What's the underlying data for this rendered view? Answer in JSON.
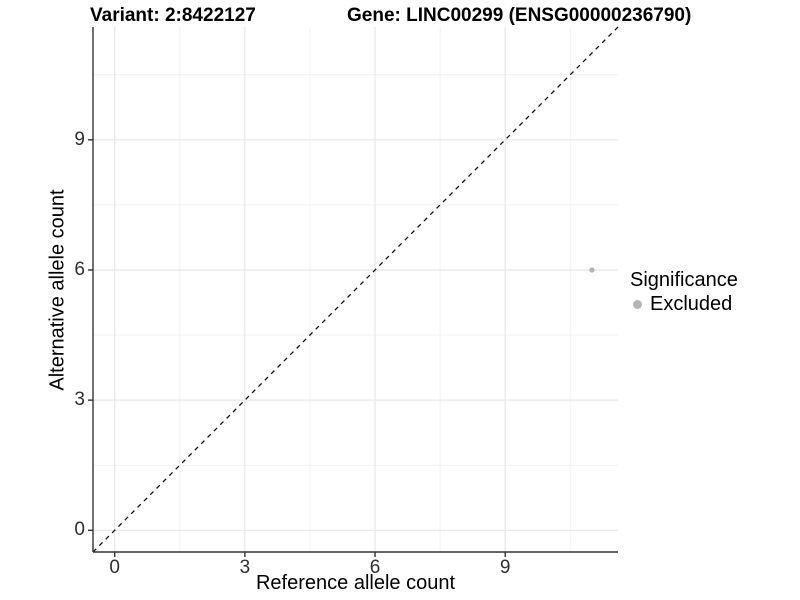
{
  "header": {
    "variant_title": "Variant: 2:8422127",
    "gene_title": "Gene: LINC00299 (ENSG00000236790)"
  },
  "chart_data": {
    "type": "scatter",
    "title_left": "Variant: 2:8422127",
    "title_right": "Gene: LINC00299 (ENSG00000236790)",
    "xlabel": "Reference allele count",
    "ylabel": "Alternative allele count",
    "xlim": [
      -0.5,
      11.6
    ],
    "ylim": [
      -0.5,
      11.6
    ],
    "xticks": [
      0,
      3,
      6,
      9
    ],
    "yticks": [
      0,
      3,
      6,
      9
    ],
    "minor_ticks": [
      1.5,
      4.5,
      7.5,
      10.5
    ],
    "grid": true,
    "reference_line": {
      "type": "identity",
      "style": "dashed",
      "color": "#111111"
    },
    "points": [
      {
        "x": 11,
        "y": 6,
        "significance": "Excluded",
        "color": "#b5b5b5",
        "radius": 2.6
      }
    ],
    "legend": {
      "title": "Significance",
      "position": "right",
      "items": [
        {
          "label": "Excluded",
          "color": "#b5b5b5"
        }
      ]
    },
    "colors": {
      "panel_background": "#ffffff",
      "grid_major": "#e7e7e7",
      "grid_minor": "#f1f1f1",
      "axis_line": "#333333",
      "tick_mark": "#333333"
    }
  }
}
